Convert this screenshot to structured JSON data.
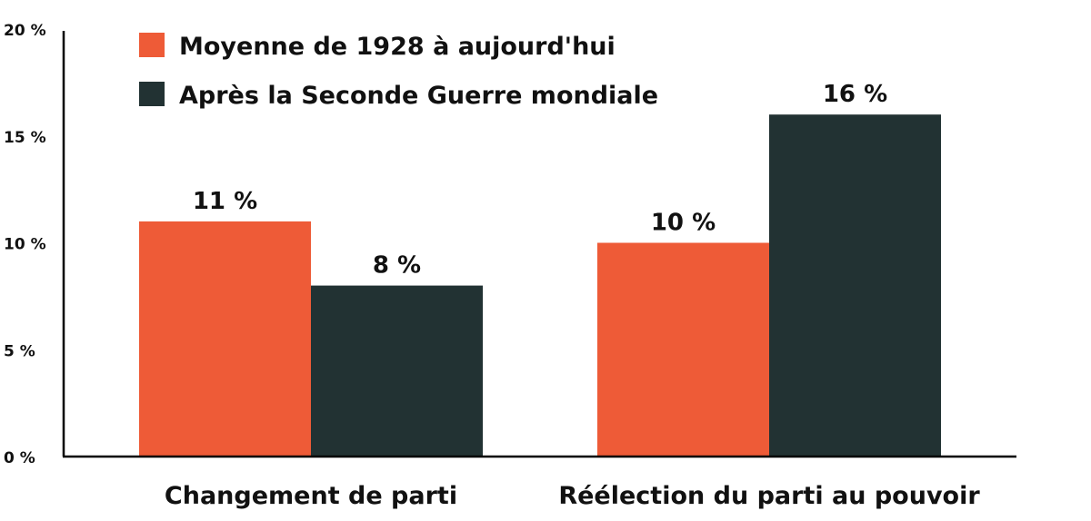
{
  "chart_data": {
    "type": "bar",
    "title": "",
    "xlabel": "",
    "ylabel": "",
    "ylim": [
      0,
      20
    ],
    "yticks": [
      "0 %",
      "5 %",
      "10 %",
      "15 %",
      "20 %"
    ],
    "ytick_values": [
      0,
      5,
      10,
      15,
      20
    ],
    "categories": [
      "Changement de parti",
      "Réélection du parti au pouvoir"
    ],
    "series": [
      {
        "name": "Moyenne de 1928 à aujourd'hui",
        "color": "#EE5B37",
        "values": [
          11,
          10
        ],
        "labels": [
          "11 %",
          "10 %"
        ]
      },
      {
        "name": "Après la Seconde Guerre mondiale",
        "color": "#223233",
        "values": [
          8,
          16
        ],
        "labels": [
          "8 %",
          "16 %"
        ]
      }
    ],
    "legend": "top-left",
    "grid": false
  }
}
